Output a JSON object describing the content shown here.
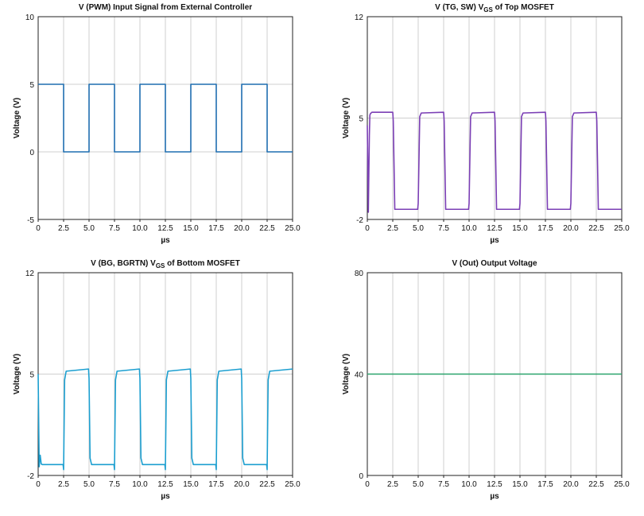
{
  "chart_data": [
    {
      "type": "line",
      "title": "V (PWM) Input Signal from External Controller",
      "title_sub": "",
      "title_suffix": "",
      "xlabel": "µs",
      "ylabel": "Voltage (V)",
      "xlim": [
        0,
        25
      ],
      "ylim": [
        -5,
        10
      ],
      "xticks": [
        "0",
        "2.5",
        "5.0",
        "7.5",
        "10.0",
        "12.5",
        "15.0",
        "17.5",
        "20.0",
        "22.5",
        "25.0"
      ],
      "yticks": [
        [
          "-5",
          -5
        ],
        [
          "0",
          0
        ],
        [
          "5",
          5
        ],
        [
          "10",
          10
        ]
      ],
      "grid": true,
      "color": "#1f6eb0",
      "series": [
        {
          "x": [
            0,
            2.5,
            2.5,
            5,
            5,
            7.5,
            7.5,
            10,
            10,
            12.5,
            12.5,
            15,
            15,
            17.5,
            17.5,
            20,
            20,
            22.5,
            22.5,
            25
          ],
          "y": [
            5,
            5,
            0,
            0,
            5,
            5,
            0,
            0,
            5,
            5,
            0,
            0,
            5,
            5,
            0,
            0,
            5,
            5,
            0,
            0
          ]
        }
      ]
    },
    {
      "type": "line",
      "title": "V (TG, SW) V",
      "title_sub": "GS",
      "title_suffix": " of Top MOSFET",
      "xlabel": "µs",
      "ylabel": "Voltage (V)",
      "xlim": [
        0,
        25
      ],
      "ylim": [
        -2,
        12
      ],
      "xticks": [
        "0",
        "2.5",
        "5.0",
        "7.5",
        "10.0",
        "12.5",
        "15.0",
        "17.5",
        "20.0",
        "22.5",
        "25.0"
      ],
      "yticks": [
        [
          "-2",
          -2
        ],
        [
          "5",
          5
        ],
        [
          "12",
          12
        ]
      ],
      "grid": true,
      "color": "#7b3fb5",
      "series": [
        {
          "x": [
            0,
            0.1,
            0.2,
            0.25,
            0.3,
            0.45,
            2.5,
            2.55,
            2.7,
            4.95,
            5.0,
            5.15,
            5.3,
            7.5,
            7.55,
            7.7,
            9.95,
            10.0,
            10.15,
            10.3,
            12.5,
            12.55,
            12.7,
            14.95,
            15.0,
            15.15,
            15.3,
            17.5,
            17.55,
            17.7,
            19.95,
            20.0,
            20.15,
            20.3,
            22.5,
            22.55,
            22.7,
            25
          ],
          "y": [
            4.5,
            -1.5,
            3.8,
            5.2,
            5.3,
            5.4,
            5.4,
            4.8,
            -1.3,
            -1.3,
            -0.9,
            5.1,
            5.35,
            5.4,
            4.8,
            -1.3,
            -1.3,
            -0.9,
            5.1,
            5.35,
            5.4,
            4.8,
            -1.3,
            -1.3,
            -0.9,
            5.1,
            5.35,
            5.4,
            4.8,
            -1.3,
            -1.3,
            -0.9,
            5.1,
            5.35,
            5.4,
            4.8,
            -1.3,
            -1.3
          ]
        }
      ]
    },
    {
      "type": "line",
      "title": "V (BG, BGRTN) V",
      "title_sub": "GS",
      "title_suffix": " of Bottom MOSFET",
      "xlabel": "µs",
      "ylabel": "Voltage (V)",
      "xlim": [
        0,
        25
      ],
      "ylim": [
        -2,
        12
      ],
      "xticks": [
        "0",
        "2.5",
        "5.0",
        "7.5",
        "10.0",
        "12.5",
        "15.0",
        "17.5",
        "20.0",
        "22.5",
        "25.0"
      ],
      "yticks": [
        [
          "-2",
          -2
        ],
        [
          "5",
          5
        ],
        [
          "12",
          12
        ]
      ],
      "grid": true,
      "color": "#1c9fd0",
      "series": [
        {
          "x": [
            0,
            0.1,
            0.2,
            0.3,
            0.4,
            2.45,
            2.5,
            2.6,
            2.75,
            4.95,
            5.0,
            5.1,
            5.25,
            7.45,
            7.5,
            7.6,
            7.75,
            9.95,
            10.0,
            10.1,
            10.25,
            12.45,
            12.5,
            12.6,
            12.75,
            14.95,
            15.0,
            15.1,
            15.25,
            17.45,
            17.5,
            17.6,
            17.75,
            19.95,
            20.0,
            20.1,
            20.25,
            22.45,
            22.5,
            22.6,
            22.75,
            25
          ],
          "y": [
            5,
            -1.4,
            -0.6,
            -1.2,
            -1.25,
            -1.25,
            -1.6,
            4.6,
            5.2,
            5.35,
            4.7,
            -0.8,
            -1.25,
            -1.25,
            -1.6,
            4.6,
            5.2,
            5.35,
            4.7,
            -0.8,
            -1.25,
            -1.25,
            -1.6,
            4.6,
            5.2,
            5.35,
            4.7,
            -0.8,
            -1.25,
            -1.25,
            -1.6,
            4.6,
            5.2,
            5.35,
            4.7,
            -0.8,
            -1.25,
            -1.25,
            -1.6,
            4.6,
            5.2,
            5.35
          ]
        }
      ]
    },
    {
      "type": "line",
      "title": "V (Out) Output Voltage",
      "title_sub": "",
      "title_suffix": "",
      "xlabel": "µs",
      "ylabel": "Voltage (V)",
      "xlim": [
        0,
        25
      ],
      "ylim": [
        0,
        80
      ],
      "xticks": [
        "0",
        "2.5",
        "5.0",
        "7.5",
        "10.0",
        "12.5",
        "15.0",
        "17.5",
        "20.0",
        "22.5",
        "25.0"
      ],
      "yticks": [
        [
          "0",
          0
        ],
        [
          "40",
          40
        ],
        [
          "80",
          80
        ]
      ],
      "grid": true,
      "color": "#2aa36b",
      "series": [
        {
          "x": [
            0,
            25
          ],
          "y": [
            40,
            40
          ]
        }
      ]
    }
  ]
}
